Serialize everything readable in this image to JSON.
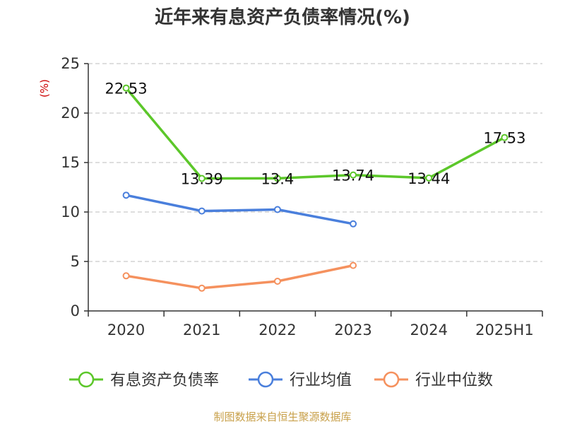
{
  "chart_data": {
    "type": "line",
    "title": "近年来有息资产负债率情况(%)",
    "ylabel": "(%)",
    "ylim": [
      0,
      25
    ],
    "yticks": [
      0,
      5,
      10,
      15,
      20,
      25
    ],
    "categories": [
      "2020",
      "2021",
      "2022",
      "2023",
      "2024",
      "2025H1"
    ],
    "grid": true,
    "legend_position": "bottom",
    "series": [
      {
        "name": "有息资产负债率",
        "color": "#5cc72a",
        "values": [
          22.53,
          13.39,
          13.4,
          13.74,
          13.44,
          17.53
        ],
        "labels": [
          "22.53",
          "13.39",
          "13.4",
          "13.74",
          "13.44",
          "17.53"
        ]
      },
      {
        "name": "行业均值",
        "color": "#4a7fdc",
        "values": [
          11.7,
          10.1,
          10.25,
          8.8,
          null,
          null
        ]
      },
      {
        "name": "行业中位数",
        "color": "#f5915e",
        "values": [
          3.55,
          2.3,
          3.0,
          4.6,
          null,
          null
        ]
      }
    ],
    "source": "制图数据来自恒生聚源数据库"
  }
}
